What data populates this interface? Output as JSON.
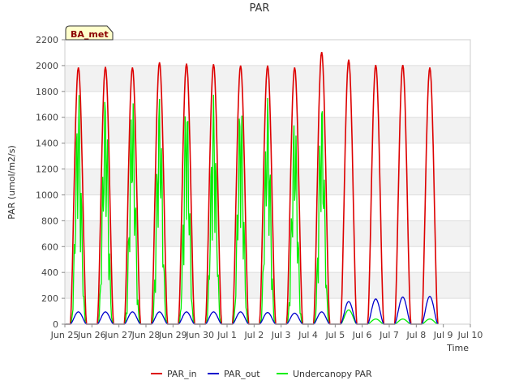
{
  "chart_data": {
    "type": "line",
    "title": "PAR",
    "xlabel": "Time",
    "ylabel": "PAR (umol/m2/s)",
    "badge": "BA_met",
    "x_range": [
      0,
      15
    ],
    "ylim": [
      0,
      2200
    ],
    "y_ticks": [
      0,
      200,
      400,
      600,
      800,
      1000,
      1200,
      1400,
      1600,
      1800,
      2000,
      2200
    ],
    "x_ticks": [
      {
        "value": 0,
        "label": "Jun 25"
      },
      {
        "value": 1,
        "label": "Jun 26"
      },
      {
        "value": 2,
        "label": "Jun 27"
      },
      {
        "value": 3,
        "label": "Jun 28"
      },
      {
        "value": 4,
        "label": "Jun 29"
      },
      {
        "value": 5,
        "label": "Jun 30"
      },
      {
        "value": 6,
        "label": "Jul 1"
      },
      {
        "value": 7,
        "label": "Jul 2"
      },
      {
        "value": 8,
        "label": "Jul 3"
      },
      {
        "value": 9,
        "label": "Jul 4"
      },
      {
        "value": 10,
        "label": "Jul 5"
      },
      {
        "value": 11,
        "label": "Jul 6"
      },
      {
        "value": 12,
        "label": "Jul 7"
      },
      {
        "value": 13,
        "label": "Jul 8"
      },
      {
        "value": 14,
        "label": "Jul 9"
      },
      {
        "value": 15,
        "label": "Jul 10"
      }
    ],
    "grid": true,
    "legend_position": "bottom",
    "day_range": [
      0.2,
      0.8
    ],
    "series": [
      {
        "name": "PAR_in",
        "color": "#dd0000",
        "daily_peaks": [
          1985,
          1990,
          1985,
          2025,
          2015,
          2010,
          2000,
          2000,
          1985,
          2105,
          2045,
          2005,
          2005,
          1985
        ]
      },
      {
        "name": "PAR_out",
        "color": "#0000cc",
        "daily_peaks": [
          95,
          95,
          95,
          95,
          95,
          95,
          95,
          90,
          85,
          95,
          175,
          195,
          210,
          215
        ]
      },
      {
        "name": "Undercanopy PAR",
        "color": "#00ee00",
        "daily_peaks": [
          1820,
          1815,
          1810,
          1790,
          1785,
          1775,
          1790,
          1780,
          1650,
          1760,
          110,
          40,
          40,
          40
        ]
      }
    ]
  }
}
